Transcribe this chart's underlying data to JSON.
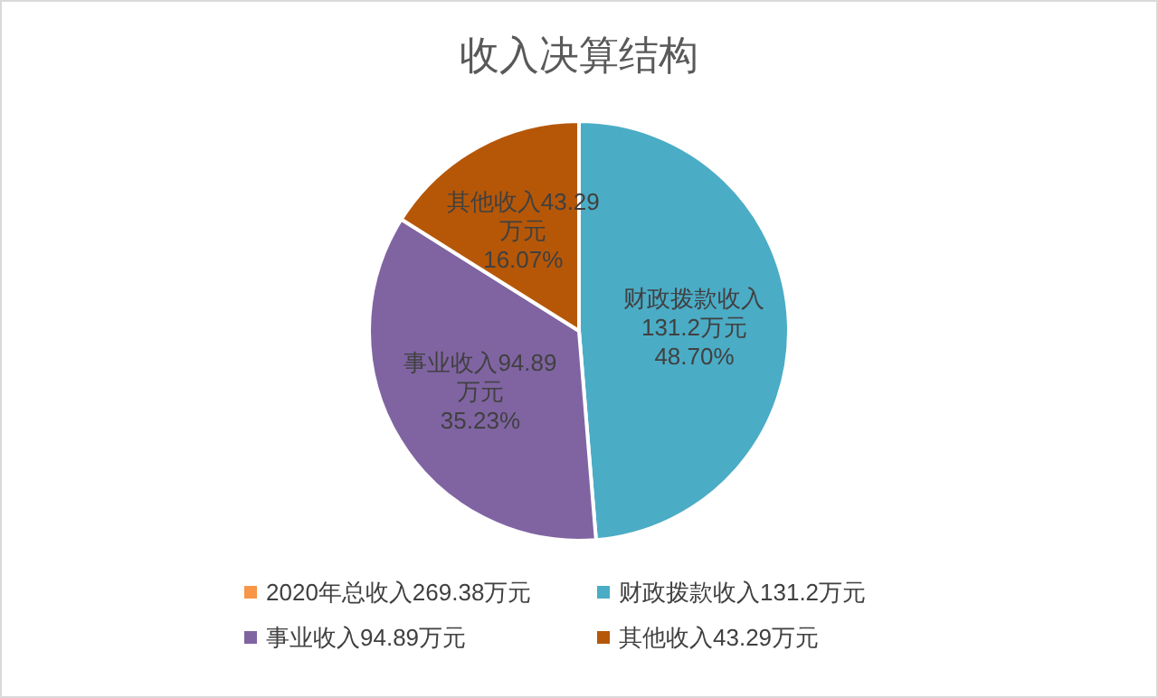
{
  "chart_data": {
    "type": "pie",
    "title": "收入决算结构",
    "categories": [
      "2020年总收入269.38万元",
      "财政拨款收入131.2万元",
      "事业收入94.89万元",
      "其他收入43.29万元"
    ],
    "values": [
      0,
      131.2,
      94.89,
      43.29
    ],
    "colors": [
      "#f79646",
      "#4bacc6",
      "#8064a2",
      "#b65708"
    ],
    "value_labels": [
      null,
      "财政拨款收入\n131.2万元\n48.70%",
      "事业收入94.89\n万元\n35.23%",
      "其他收入43.29\n万元\n16.07%"
    ],
    "legend": "bottom"
  }
}
